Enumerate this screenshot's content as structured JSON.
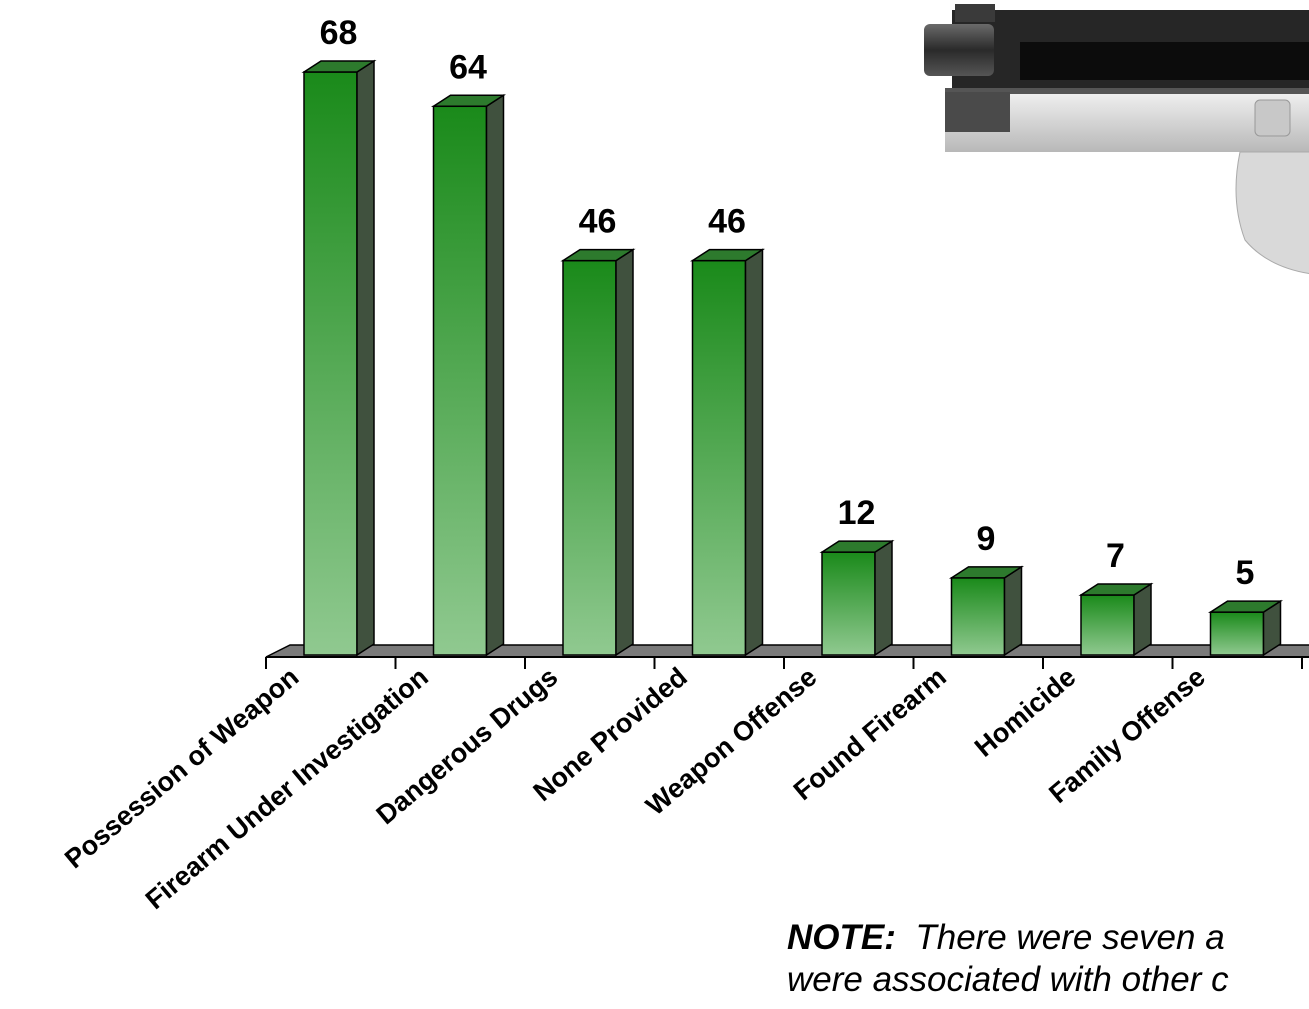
{
  "chart_data": {
    "type": "bar",
    "categories": [
      "Possession of Weapon",
      "Firearm Under Investigation",
      "Dangerous Drugs",
      "None Provided",
      "Weapon Offense",
      "Found Firearm",
      "Homicide",
      "Family Offense"
    ],
    "values": [
      68,
      64,
      46,
      46,
      12,
      9,
      7,
      5
    ],
    "value_labels": [
      "68",
      "64",
      "46",
      "46",
      "12",
      "9",
      "7",
      "5"
    ],
    "ylim": [
      0,
      68
    ],
    "title": "",
    "xlabel": "",
    "ylabel": "",
    "grid": false,
    "bar_color": "#1a8a1a",
    "bar_color_light": "#90c990",
    "floor_color": "#7a7a7a"
  },
  "note": {
    "bold": "NOTE:",
    "line1": "There were seven a",
    "line2": "were associated with other c"
  },
  "image": {
    "icon": "pistol-icon"
  }
}
